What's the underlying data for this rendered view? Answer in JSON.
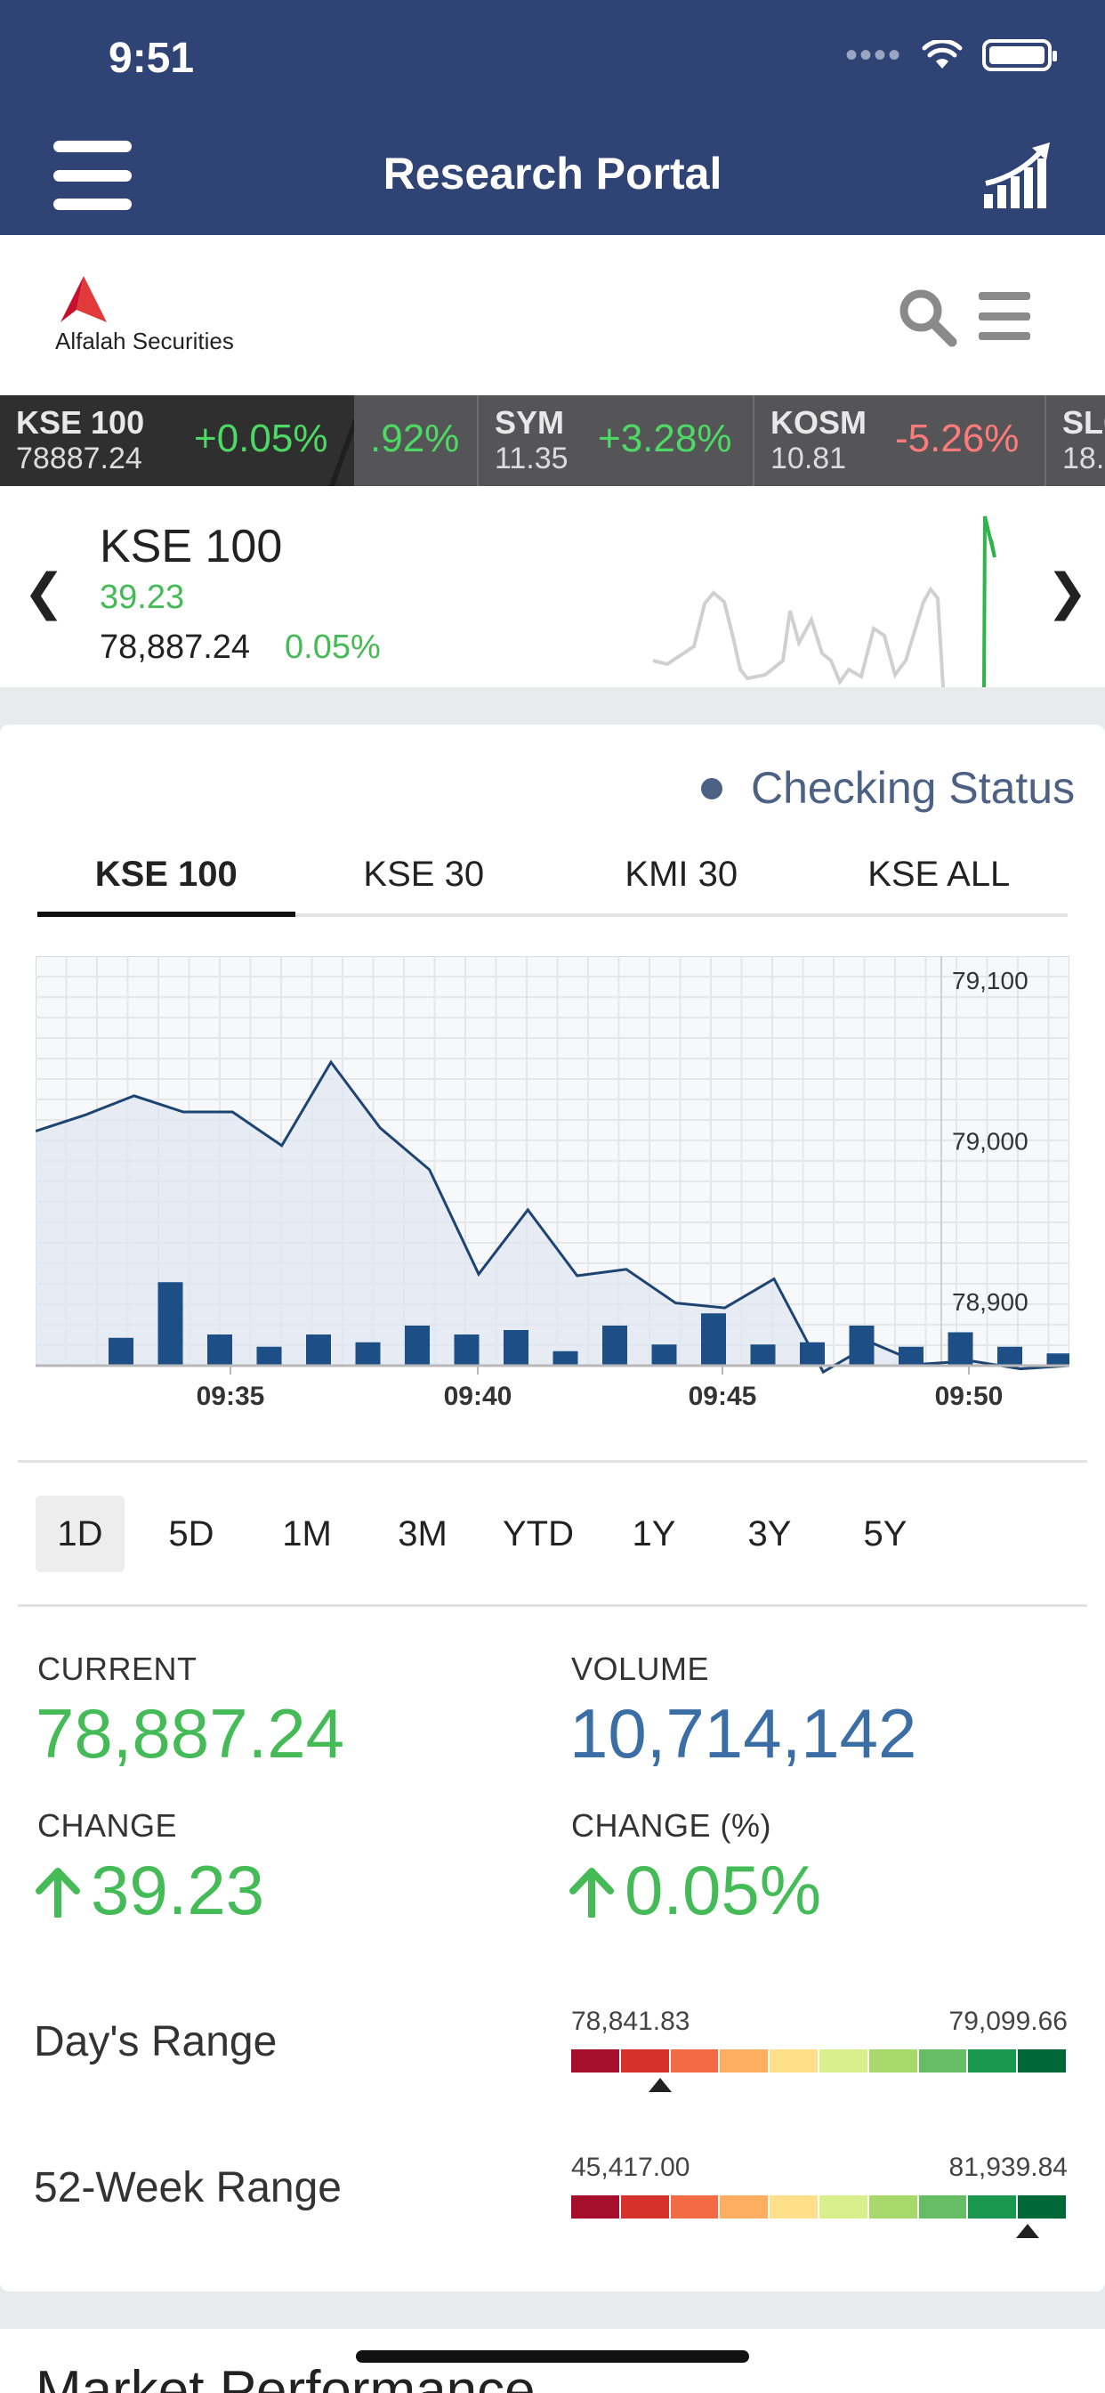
{
  "status_bar": {
    "time": "9:51"
  },
  "app_bar": {
    "title": "Research Portal",
    "menu_icon": "hamburger-icon",
    "right_icon": "growth-chart-icon"
  },
  "brand": {
    "name": "Alfalah Securities"
  },
  "ticker": [
    {
      "symbol": "KSE 100",
      "price": "78887.24",
      "change": "+0.05%",
      "direction": "up"
    },
    {
      "symbol": "",
      "price": "",
      "change": ".92%",
      "direction": "up"
    },
    {
      "symbol": "SYM",
      "price": "11.35",
      "change": "+3.28%",
      "direction": "up"
    },
    {
      "symbol": "KOSM",
      "price": "10.81",
      "change": "-5.26%",
      "direction": "down"
    },
    {
      "symbol": "SLC",
      "price": "18.",
      "change": "",
      "direction": ""
    }
  ],
  "summary": {
    "name": "KSE 100",
    "change": "39.23",
    "price": "78,887.24",
    "pct": "0.05%"
  },
  "status": "Checking Status",
  "tabs": [
    "KSE 100",
    "KSE 30",
    "KMI 30",
    "KSE ALL"
  ],
  "active_tab": "KSE 100",
  "ranges": [
    "1D",
    "5D",
    "1M",
    "3M",
    "YTD",
    "1Y",
    "3Y",
    "5Y"
  ],
  "active_range": "1D",
  "stats": {
    "current_label": "CURRENT",
    "current": "78,887.24",
    "volume_label": "VOLUME",
    "volume": "10,714,142",
    "change_label": "CHANGE",
    "change": "39.23",
    "change_pct_label": "CHANGE (%)",
    "change_pct": "0.05%"
  },
  "days_range": {
    "label": "Day's Range",
    "low": "78,841.83",
    "high": "79,099.66",
    "position": 0.18
  },
  "week52_range": {
    "label": "52-Week Range",
    "low": "45,417.00",
    "high": "81,939.84",
    "position": 0.92
  },
  "colors": {
    "brand_navy": "#2f4375",
    "up_green": "#45bb58",
    "down_red": "#ff6b6b",
    "volume_blue": "#3b6ea5",
    "chart_line": "#1e4472",
    "bar_blue": "#1d4f86"
  },
  "range_scale_colors": [
    "#a50f2c",
    "#d7312b",
    "#f26b43",
    "#fdae61",
    "#fee08b",
    "#d9ef8b",
    "#a6d96a",
    "#66bd63",
    "#1a9850",
    "#006837"
  ],
  "bottom": {
    "title": "Market Performance"
  },
  "chart_data": {
    "type": "line",
    "x_ticks": [
      "09:35",
      "09:40",
      "09:45",
      "09:50"
    ],
    "y_ticks": [
      "79,100",
      "79,000",
      "78,900"
    ],
    "ylim": [
      78860,
      79115
    ],
    "series": [
      {
        "values": [
          79006,
          79016,
          79028,
          79018,
          79018,
          78997,
          79049,
          79008,
          78982,
          78917,
          78957,
          78916,
          78920,
          78899,
          78896,
          78914,
          78856,
          78874,
          78861,
          78863,
          78858,
          78860
        ]
      }
    ],
    "volumes": [
      0.25,
      0.75,
      0.28,
      0.17,
      0.28,
      0.21,
      0.36,
      0.28,
      0.32,
      0.13,
      0.36,
      0.19,
      0.47,
      0.19,
      0.21,
      0.36,
      0.17,
      0.3,
      0.17,
      0.11
    ]
  }
}
